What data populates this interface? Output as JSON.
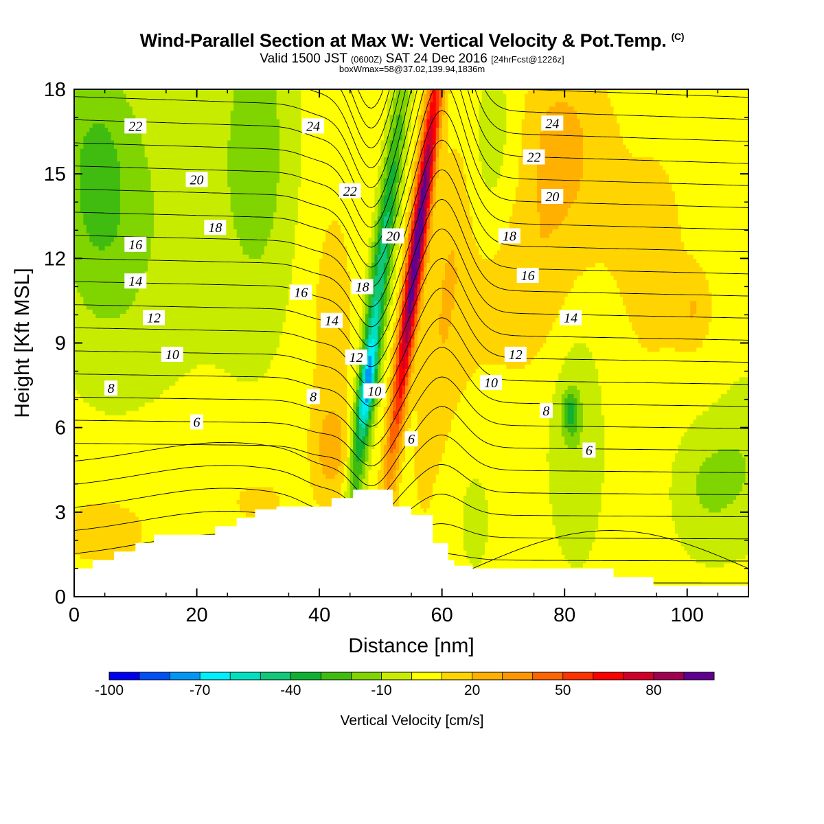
{
  "title": {
    "main": "Wind-Parallel Section at Max W: Vertical Velocity & Pot.Temp.",
    "copyright": "(C)",
    "valid_prefix": "Valid 1500 JST",
    "utc": "(0600Z)",
    "date": "SAT 24 Dec 2016",
    "forecast": "[24hrFcst@1226z]",
    "box": "boxWmax=58@37.02,139.94,1836m"
  },
  "chart_data": {
    "type": "heatmap",
    "xlabel": "Distance [nm]",
    "ylabel": "Height [Kft MSL]",
    "xlim": [
      0,
      110
    ],
    "ylim": [
      0,
      18
    ],
    "xticks": [
      0,
      20,
      40,
      60,
      80,
      100
    ],
    "yticks": [
      0,
      3,
      6,
      9,
      12,
      15,
      18
    ],
    "colorbar": {
      "label": "Vertical Velocity [cm/s]",
      "levels": [
        -100,
        -90,
        -80,
        -70,
        -60,
        -50,
        -40,
        -30,
        -20,
        -10,
        0,
        10,
        20,
        30,
        40,
        50,
        60,
        70,
        80,
        90,
        100
      ],
      "tick_labels": [
        -100,
        -70,
        -40,
        -10,
        20,
        50,
        80
      ],
      "colors": [
        "#0000f0",
        "#0050f5",
        "#0096f5",
        "#00eefa",
        "#00e0c0",
        "#10c878",
        "#10b030",
        "#40bc10",
        "#80d400",
        "#c8ec00",
        "#ffff00",
        "#ffd400",
        "#ffb000",
        "#ff9600",
        "#ff6400",
        "#ff3200",
        "#ff0000",
        "#d00028",
        "#a00050",
        "#600090"
      ]
    },
    "terrain": [
      [
        0,
        1.0
      ],
      [
        3,
        1.3
      ],
      [
        6.5,
        1.6
      ],
      [
        10,
        1.9
      ],
      [
        13,
        2.2
      ],
      [
        23,
        2.5
      ],
      [
        26.5,
        2.8
      ],
      [
        29.5,
        3.1
      ],
      [
        33,
        3.2
      ],
      [
        42,
        3.5
      ],
      [
        45.5,
        3.8
      ],
      [
        49,
        3.8
      ],
      [
        52,
        3.8
      ],
      [
        52,
        3.2
      ],
      [
        55,
        2.9
      ],
      [
        55.5,
        2.9
      ],
      [
        58.5,
        2.9
      ],
      [
        58.5,
        1.9
      ],
      [
        61,
        1.9
      ],
      [
        61,
        1.3
      ],
      [
        62,
        1.1
      ],
      [
        65,
        1.0
      ],
      [
        84,
        1.0
      ],
      [
        88,
        0.7
      ],
      [
        94.5,
        0.4
      ],
      [
        110,
        0.3
      ]
    ],
    "theta_contour_labels": [
      {
        "text": "22",
        "x": 10,
        "y": 16.7
      },
      {
        "text": "24",
        "x": 39,
        "y": 16.7
      },
      {
        "text": "24",
        "x": 78,
        "y": 16.8
      },
      {
        "text": "20",
        "x": 20,
        "y": 14.8
      },
      {
        "text": "22",
        "x": 45,
        "y": 14.4
      },
      {
        "text": "22",
        "x": 75,
        "y": 15.6
      },
      {
        "text": "18",
        "x": 23,
        "y": 13.1
      },
      {
        "text": "20",
        "x": 78,
        "y": 14.2
      },
      {
        "text": "20",
        "x": 52,
        "y": 12.8
      },
      {
        "text": "16",
        "x": 10,
        "y": 12.5
      },
      {
        "text": "18",
        "x": 71,
        "y": 12.8
      },
      {
        "text": "14",
        "x": 10,
        "y": 11.2
      },
      {
        "text": "16",
        "x": 37,
        "y": 10.8
      },
      {
        "text": "18",
        "x": 47,
        "y": 11.0
      },
      {
        "text": "16",
        "x": 74,
        "y": 11.4
      },
      {
        "text": "12",
        "x": 13,
        "y": 9.9
      },
      {
        "text": "14",
        "x": 42,
        "y": 9.8
      },
      {
        "text": "14",
        "x": 81,
        "y": 9.9
      },
      {
        "text": "10",
        "x": 16,
        "y": 8.6
      },
      {
        "text": "12",
        "x": 46,
        "y": 8.5
      },
      {
        "text": "12",
        "x": 72,
        "y": 8.6
      },
      {
        "text": "8",
        "x": 6,
        "y": 7.4
      },
      {
        "text": "10",
        "x": 49,
        "y": 7.3
      },
      {
        "text": "10",
        "x": 68,
        "y": 7.6
      },
      {
        "text": "8",
        "x": 39,
        "y": 7.1
      },
      {
        "text": "8",
        "x": 77,
        "y": 6.6
      },
      {
        "text": "6",
        "x": 20,
        "y": 6.2
      },
      {
        "text": "6",
        "x": 55,
        "y": 5.6
      },
      {
        "text": "6",
        "x": 84,
        "y": 5.2
      }
    ]
  }
}
